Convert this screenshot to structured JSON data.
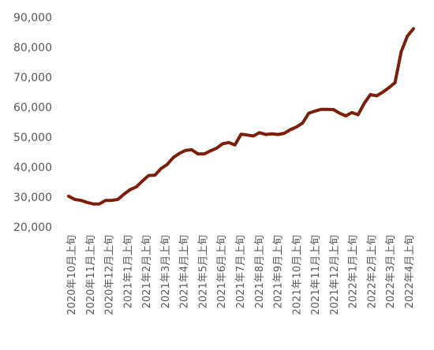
{
  "chart_data": {
    "type": "line",
    "title": "",
    "xlabel": "",
    "ylabel": "",
    "ylim": [
      20000,
      90000
    ],
    "yticks": [
      20000,
      30000,
      40000,
      50000,
      60000,
      70000,
      80000,
      90000
    ],
    "ytick_labels": [
      "20,000",
      "30,000",
      "40,000",
      "50,000",
      "60,000",
      "70,000",
      "80,000",
      "90,000"
    ],
    "grid": false,
    "legend": "none",
    "x_labels": [
      "2020年10月上旬",
      "2020年11月上旬",
      "2020年12月上旬",
      "2021年1月上旬",
      "2021年2月上旬",
      "2021年3月上旬",
      "2021年4月上旬",
      "2021年5月上旬",
      "2021年6月上旬",
      "2021年7月上旬",
      "2021年8月上旬",
      "2021年9月上旬",
      "2021年10月上旬",
      "2021年11月上旬",
      "2021年12月上旬",
      "2022年1月上旬",
      "2022年2月上旬",
      "2022年3月上旬",
      "2022年4月上旬"
    ],
    "series": [
      {
        "color": "#7b1e0c",
        "values": [
          30300,
          29200,
          28900,
          28200,
          27700,
          27700,
          28900,
          28900,
          29200,
          31000,
          32500,
          33400,
          35400,
          37200,
          37300,
          39500,
          40900,
          43200,
          44600,
          45600,
          45800,
          44400,
          44400,
          45400,
          46300,
          47800,
          48200,
          47400,
          51000,
          50700,
          50400,
          51500,
          50900,
          51100,
          50900,
          51300,
          52500,
          53400,
          54700,
          58000,
          58700,
          59300,
          59300,
          59200,
          58000,
          57100,
          58200,
          57500,
          61300,
          64200,
          63800,
          65000,
          66500,
          68200,
          78500,
          83700,
          86200
        ]
      }
    ]
  }
}
